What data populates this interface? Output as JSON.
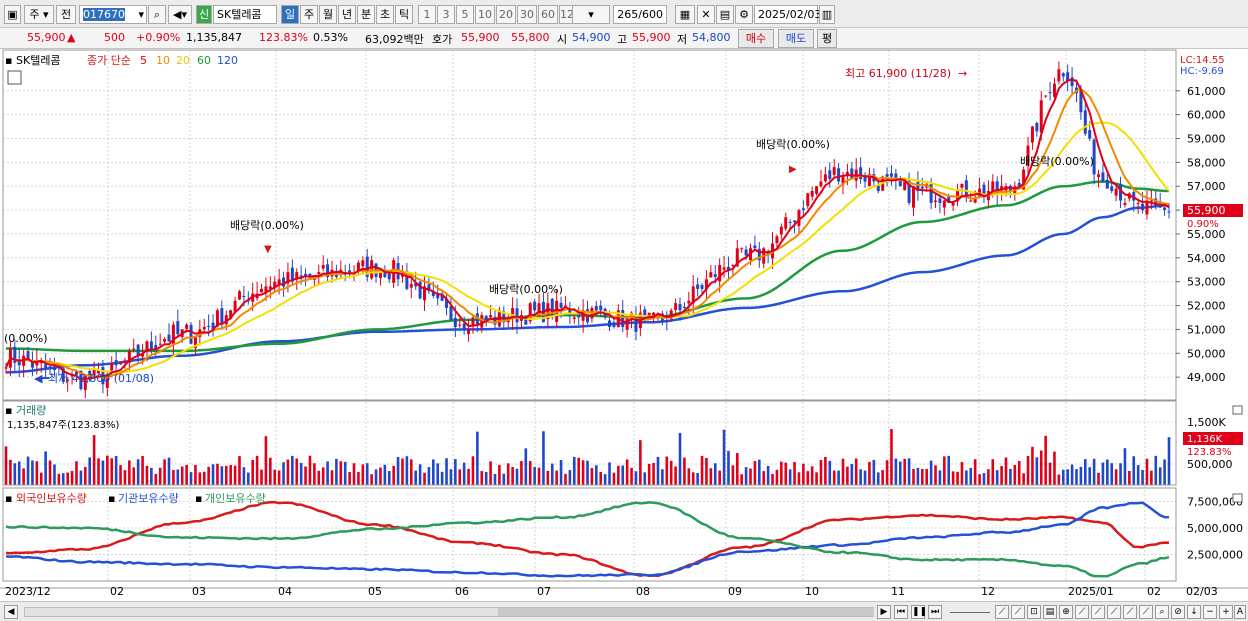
{
  "toolbar": {
    "market": "주",
    "prev_label": "전",
    "code": "017670",
    "name": "SK텔레콤",
    "credit_badge": "신",
    "periods": [
      "일",
      "주",
      "월",
      "년",
      "분",
      "초",
      "틱"
    ],
    "numbers": [
      "1",
      "3",
      "5",
      "10",
      "20",
      "30",
      "60",
      "120"
    ],
    "count": "265",
    "count_total": "/600",
    "date": "2025/02/03"
  },
  "quote": {
    "price": "55,900",
    "change_arrow": "▲",
    "change": "500",
    "change_pct": "+0.90%",
    "volume": "1,135,847",
    "volume_ratio": "123.83%",
    "turnover": "0.53%",
    "amount": "63,092백만",
    "ask_label": "호가",
    "ask": "55,900",
    "bid": "55,800",
    "open_label": "시",
    "open": "54,900",
    "high_label": "고",
    "high": "55,900",
    "low_label": "저",
    "low": "54,800",
    "buy_button": "매수",
    "sell_button": "매도",
    "eval_button": "평"
  },
  "price_panel": {
    "name": "SK텔레콤",
    "ma_label": "종가 단순",
    "ma_periods": [
      "5",
      "10",
      "20",
      "60",
      "120"
    ],
    "lc": "LC:14.55",
    "hc": "HC:-9.69",
    "current_price": "55,900",
    "current_pct": "0.90%",
    "high_marker": "최고 61,900 (11/28)",
    "low_marker": "최저 48,800 (01/08)",
    "dividend_label": "배당락(0.00%)",
    "dividend_partial": "(0.00%)"
  },
  "volume_panel": {
    "title": "거래량",
    "summary": "1,135,847주(123.83%)",
    "current": "1,136K",
    "current_pct": "123.83%"
  },
  "holding_panel": {
    "legend": [
      "외국인보유수량",
      "기관보유수량",
      "개인보유수량"
    ]
  },
  "x_axis": {
    "labels": [
      "2023/12",
      "02",
      "03",
      "04",
      "05",
      "06",
      "07",
      "08",
      "09",
      "10",
      "11",
      "12",
      "2025/01",
      "02"
    ],
    "right_label": "02/03"
  },
  "colors": {
    "up": "#e0001a",
    "down": "#1f47c8",
    "ma5": "#e0001a",
    "ma10": "#f08a00",
    "ma20": "#f2e000",
    "ma60": "#1f9a3a",
    "ma120": "#2451d6",
    "foreign": "#d81a1a",
    "institution": "#2451d6",
    "individual": "#2e9a5e"
  },
  "chart_data": [
    {
      "type": "line",
      "title": "SK텔레콤 종가 단순 5 10 20 60 120",
      "x": [
        "2023/12",
        "01/08",
        "02",
        "03",
        "04",
        "05",
        "06",
        "07",
        "08",
        "09",
        "10",
        "11",
        "11/28",
        "12",
        "2025/01",
        "02/03"
      ],
      "series": [
        {
          "name": "5",
          "values": [
            49800,
            48900,
            50800,
            53000,
            53600,
            51400,
            51800,
            51300,
            54000,
            57600,
            56700,
            56800,
            61900,
            57400,
            56100,
            55900
          ]
        },
        {
          "name": "60",
          "values": [
            50200,
            50100,
            50100,
            50400,
            51000,
            51400,
            51600,
            51500,
            52300,
            54300,
            55500,
            56200,
            57000,
            57200,
            56900,
            56800
          ]
        },
        {
          "name": "120",
          "values": [
            49200,
            49500,
            49900,
            50500,
            50900,
            51000,
            51100,
            51300,
            51900,
            52600,
            53400,
            54100,
            55000,
            55700,
            56100,
            56200
          ]
        }
      ],
      "ylim": [
        48000,
        62500
      ],
      "y_ticks": [
        "61,000",
        "60,000",
        "59,000",
        "58,000",
        "57,000",
        "56,000",
        "55,000",
        "54,000",
        "53,000",
        "52,000",
        "51,000",
        "50,000",
        "49,000"
      ]
    },
    {
      "type": "bar",
      "title": "거래량",
      "ylim": [
        0,
        1900000
      ],
      "y_ticks": [
        "1,500K",
        "500,000"
      ],
      "last_value": 1135847
    },
    {
      "type": "line",
      "title": "외국인보유수량 기관보유수량 개인보유수량",
      "series": [
        {
          "name": "외국인보유수량",
          "values": [
            2600000,
            3000000,
            5500000,
            7400000,
            5300000,
            3600000,
            2500000,
            500000,
            3200000,
            5800000,
            6200000,
            5800000,
            6000000,
            5500000,
            3200000,
            3600000
          ]
        },
        {
          "name": "기관보유수량",
          "values": [
            2300000,
            1800000,
            1600000,
            1300000,
            1100000,
            800000,
            500000,
            600000,
            2800000,
            3400000,
            4100000,
            4600000,
            5300000,
            6900000,
            7400000,
            6000000
          ]
        },
        {
          "name": "개인보유수량",
          "values": [
            5100000,
            5000000,
            4100000,
            4000000,
            4900000,
            5500000,
            6000000,
            7400000,
            4000000,
            2700000,
            2000000,
            2000000,
            1400000,
            400000,
            1600000,
            2200000
          ]
        }
      ],
      "ylim": [
        0,
        8300000
      ],
      "y_ticks": [
        "7,500,000",
        "5,000,000",
        "2,500,000"
      ]
    }
  ]
}
